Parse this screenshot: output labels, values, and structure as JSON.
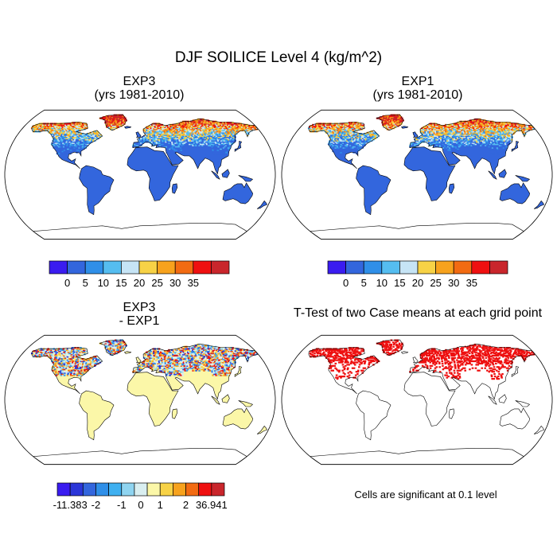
{
  "figure": {
    "title": "DJF SOILICE Level 4 (kg/m^2)"
  },
  "panels": [
    {
      "id": "exp3",
      "title_line1": "EXP3",
      "title_line2": "(yrs 1981-2010)"
    },
    {
      "id": "exp1",
      "title_line1": "EXP1",
      "title_line2": "(yrs 1981-2010)"
    },
    {
      "id": "diff",
      "title_line1": "EXP3",
      "title_line2": "- EXP1"
    },
    {
      "id": "ttest",
      "title_line1": "T-Test of two Case means at each grid point",
      "title_line2": ""
    }
  ],
  "colorbar_main": {
    "colors": [
      "#3a1cf0",
      "#3366dd",
      "#2f8fe8",
      "#55bdf0",
      "#c6e4f5",
      "#f7d246",
      "#f7a21d",
      "#f26b12",
      "#ef1010",
      "#c9262c"
    ],
    "tick_labels": [
      "0",
      "5",
      "10",
      "15",
      "20",
      "25",
      "30",
      "35"
    ]
  },
  "colorbar_diff": {
    "colors": [
      "#3a1cf0",
      "#2b36d8",
      "#3366dd",
      "#2f8fe8",
      "#3fb0f0",
      "#8fd4f0",
      "#d9eef0",
      "#fbf7a8",
      "#f7d246",
      "#f7a21d",
      "#f26b12",
      "#ef1010",
      "#c9262c"
    ],
    "tick_labels": [
      "-11.383",
      "-2",
      "-1",
      "0",
      "1",
      "2",
      "36.941"
    ]
  },
  "ttest_note": "Cells are significant at 0.1 level",
  "map_colors": {
    "ocean": "#ffffff",
    "land_low": "#3366dd",
    "diff_zero": "#fbf7a8",
    "significant": "#ee1111",
    "coast": "#000000"
  }
}
